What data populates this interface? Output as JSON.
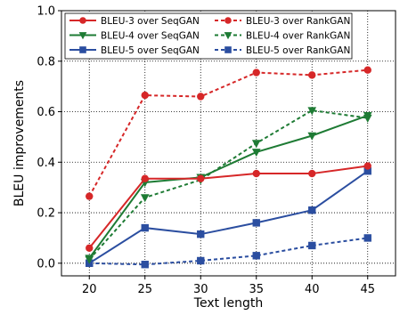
{
  "chart_data": {
    "type": "line",
    "xlabel": "Text length",
    "ylabel": "BLEU improvements",
    "x": [
      20,
      25,
      30,
      35,
      40,
      45
    ],
    "xticks": [
      "20",
      "25",
      "30",
      "35",
      "40",
      "45"
    ],
    "xlim": [
      17.5,
      47.5
    ],
    "ylim": [
      -0.05,
      1.0
    ],
    "yticks": [
      "0.0",
      "0.2",
      "0.4",
      "0.6",
      "0.8",
      "1.0"
    ],
    "grid": true,
    "legend_position": "top",
    "series": [
      {
        "name": "BLEU-3 over SeqGAN",
        "values": [
          0.06,
          0.335,
          0.335,
          0.355,
          0.355,
          0.385
        ],
        "color": "#d62728",
        "dash": "solid",
        "marker": "circle"
      },
      {
        "name": "BLEU-3 over RankGAN",
        "values": [
          0.265,
          0.665,
          0.66,
          0.755,
          0.745,
          0.765
        ],
        "color": "#d62728",
        "dash": "dashed",
        "marker": "circle"
      },
      {
        "name": "BLEU-4 over SeqGAN",
        "values": [
          0.02,
          0.32,
          0.34,
          0.44,
          0.505,
          0.585
        ],
        "color": "#1e7b34",
        "dash": "solid",
        "marker": "triangle-down"
      },
      {
        "name": "BLEU-4 over RankGAN",
        "values": [
          0.015,
          0.26,
          0.33,
          0.475,
          0.605,
          0.575
        ],
        "color": "#1e7b34",
        "dash": "dashed",
        "marker": "triangle-down"
      },
      {
        "name": "BLEU-5 over SeqGAN",
        "values": [
          0.0,
          0.14,
          0.115,
          0.16,
          0.21,
          0.365
        ],
        "color": "#2b4ea0",
        "dash": "solid",
        "marker": "square"
      },
      {
        "name": "BLEU-5 over RankGAN",
        "values": [
          0.0,
          -0.005,
          0.01,
          0.03,
          0.07,
          0.1
        ],
        "color": "#2b4ea0",
        "dash": "dashed",
        "marker": "square"
      }
    ]
  }
}
